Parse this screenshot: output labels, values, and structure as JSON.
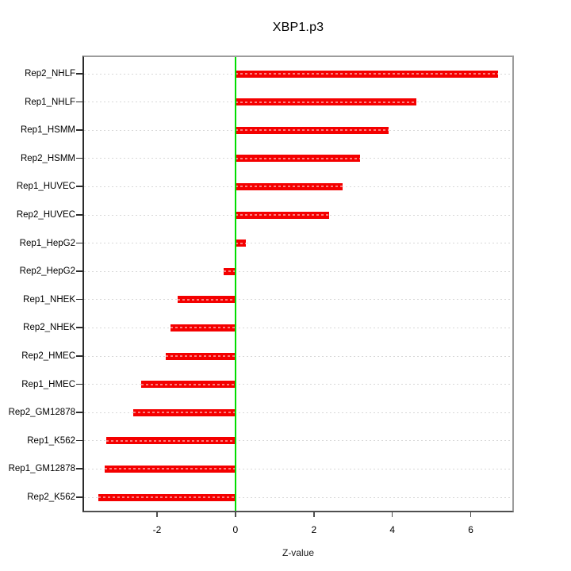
{
  "title": "XBP1.p3",
  "chart_data": {
    "type": "bar",
    "orientation": "horizontal",
    "title": "XBP1.p3",
    "xlabel": "Z-value",
    "ylabel": "",
    "categories": [
      "Rep2_NHLF",
      "Rep1_NHLF",
      "Rep1_HSMM",
      "Rep2_HSMM",
      "Rep1_HUVEC",
      "Rep2_HUVEC",
      "Rep1_HepG2",
      "Rep2_HepG2",
      "Rep1_NHEK",
      "Rep2_NHEK",
      "Rep2_HMEC",
      "Rep1_HMEC",
      "Rep2_GM12878",
      "Rep1_K562",
      "Rep1_GM12878",
      "Rep2_K562"
    ],
    "values": [
      6.7,
      4.62,
      3.91,
      3.17,
      2.74,
      2.38,
      0.27,
      -0.31,
      -1.47,
      -1.65,
      -1.77,
      -2.41,
      -2.6,
      -3.3,
      -3.34,
      -3.5
    ],
    "xlim": [
      -3.9,
      7.1
    ],
    "xticks": [
      -2,
      0,
      2,
      4,
      6
    ],
    "grid": "dotted-horizontal",
    "zero_line": true,
    "legend": "none",
    "colors": {
      "bar": "#f40000",
      "zero_line": "#00dd00",
      "grid": "#d8d8d8",
      "background": "#ffffff"
    }
  }
}
